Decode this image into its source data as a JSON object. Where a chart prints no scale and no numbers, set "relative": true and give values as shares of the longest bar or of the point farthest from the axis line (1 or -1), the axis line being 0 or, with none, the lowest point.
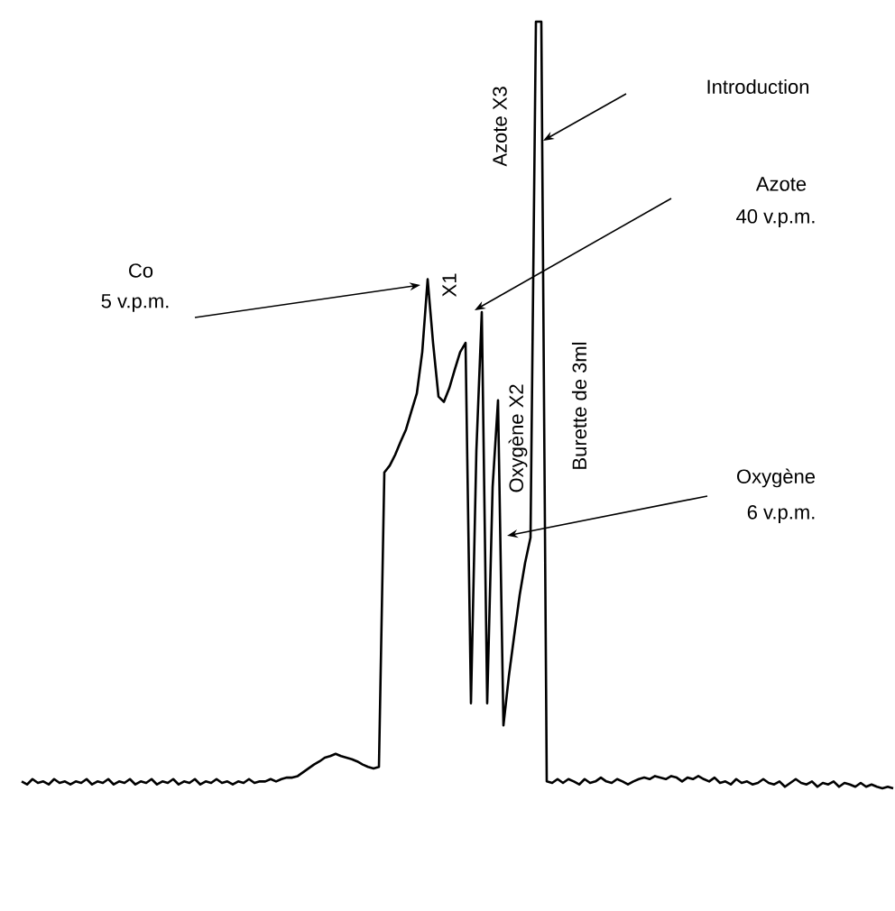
{
  "chart_data": {
    "type": "line",
    "relative": true,
    "categories": [
      null,
      null,
      null,
      null,
      null,
      null,
      null,
      null,
      null,
      null,
      null,
      null,
      null,
      null,
      null,
      null,
      null,
      null,
      null,
      null,
      null,
      null,
      null,
      null,
      null,
      null,
      null,
      null,
      null,
      null,
      null,
      null,
      null,
      null,
      null,
      null,
      null,
      null,
      null,
      null,
      null,
      null,
      null,
      null,
      null,
      null,
      null,
      null,
      null,
      null,
      null,
      null,
      null,
      null,
      null,
      null,
      null,
      null,
      null,
      null,
      null,
      null,
      null,
      null,
      null,
      null,
      null,
      null,
      null,
      null,
      null,
      null,
      null,
      null,
      null,
      null,
      null,
      null,
      null,
      null,
      null,
      null,
      null,
      null,
      null,
      null,
      null,
      null,
      null,
      null,
      null,
      null,
      null,
      null,
      null,
      null,
      null,
      null,
      null,
      null,
      null,
      null,
      null,
      null,
      null,
      null,
      null,
      null,
      null,
      null,
      null,
      null,
      null,
      null,
      null,
      null,
      null,
      null,
      null,
      null,
      null,
      null,
      null,
      null,
      null,
      null,
      null,
      null,
      null,
      null,
      null,
      null,
      null,
      null,
      null,
      null,
      null,
      null,
      null,
      null,
      null,
      null,
      null,
      null,
      null,
      null,
      null,
      null,
      null,
      null,
      null,
      null,
      null,
      null,
      null,
      null,
      null,
      null,
      null,
      null,
      null,
      null
    ],
    "series": [
      {
        "color": "#000000",
        "values": [
          0.009,
          0.005,
          0.012,
          0.007,
          0.009,
          0.005,
          0.012,
          0.007,
          0.009,
          0.005,
          0.009,
          0.007,
          0.012,
          0.005,
          0.009,
          0.007,
          0.012,
          0.005,
          0.009,
          0.007,
          0.012,
          0.005,
          0.009,
          0.007,
          0.012,
          0.005,
          0.009,
          0.007,
          0.012,
          0.005,
          0.009,
          0.007,
          0.012,
          0.005,
          0.009,
          0.007,
          0.012,
          0.007,
          0.009,
          0.005,
          0.009,
          0.007,
          0.012,
          0.007,
          0.009,
          0.009,
          0.012,
          0.009,
          0.012,
          0.014,
          0.014,
          0.016,
          0.021,
          0.026,
          0.031,
          0.035,
          0.04,
          0.042,
          0.045,
          0.042,
          0.04,
          0.038,
          0.035,
          0.031,
          0.028,
          0.026,
          0.028,
          0.412,
          0.421,
          0.435,
          0.452,
          0.468,
          0.492,
          0.515,
          0.569,
          0.664,
          0.581,
          0.511,
          0.504,
          0.522,
          0.546,
          0.569,
          0.581,
          0.111,
          0.44,
          0.621,
          0.111,
          0.393,
          0.506,
          0.082,
          0.146,
          0.2,
          0.252,
          0.294,
          0.327,
          1,
          1,
          0.009,
          0.007,
          0.012,
          0.007,
          0.012,
          0.009,
          0.005,
          0.012,
          0.007,
          0.009,
          0.014,
          0.009,
          0.007,
          0.012,
          0.009,
          0.005,
          0.009,
          0.012,
          0.014,
          0.012,
          0.016,
          0.014,
          0.012,
          0.016,
          0.014,
          0.009,
          0.014,
          0.012,
          0.016,
          0.012,
          0.009,
          0.014,
          0.007,
          0.009,
          0.005,
          0.012,
          0.007,
          0.009,
          0.005,
          0.007,
          0.012,
          0.007,
          0.005,
          0.009,
          0.002,
          0.007,
          0.012,
          0.007,
          0.005,
          0.009,
          0.002,
          0.007,
          0.005,
          0.009,
          0.002,
          0.007,
          0.005,
          0.002,
          0.007,
          0.002,
          0.005,
          0.002,
          0,
          0.002,
          0
        ]
      }
    ],
    "annotations": [
      "Co",
      "5 v.p.m.",
      "X1",
      "Azote X3",
      "Azote",
      "40 v.p.m.",
      "Oxygène X2",
      "Burette de 3ml",
      "Introduction",
      "Oxygène",
      "6 v.p.m."
    ]
  }
}
